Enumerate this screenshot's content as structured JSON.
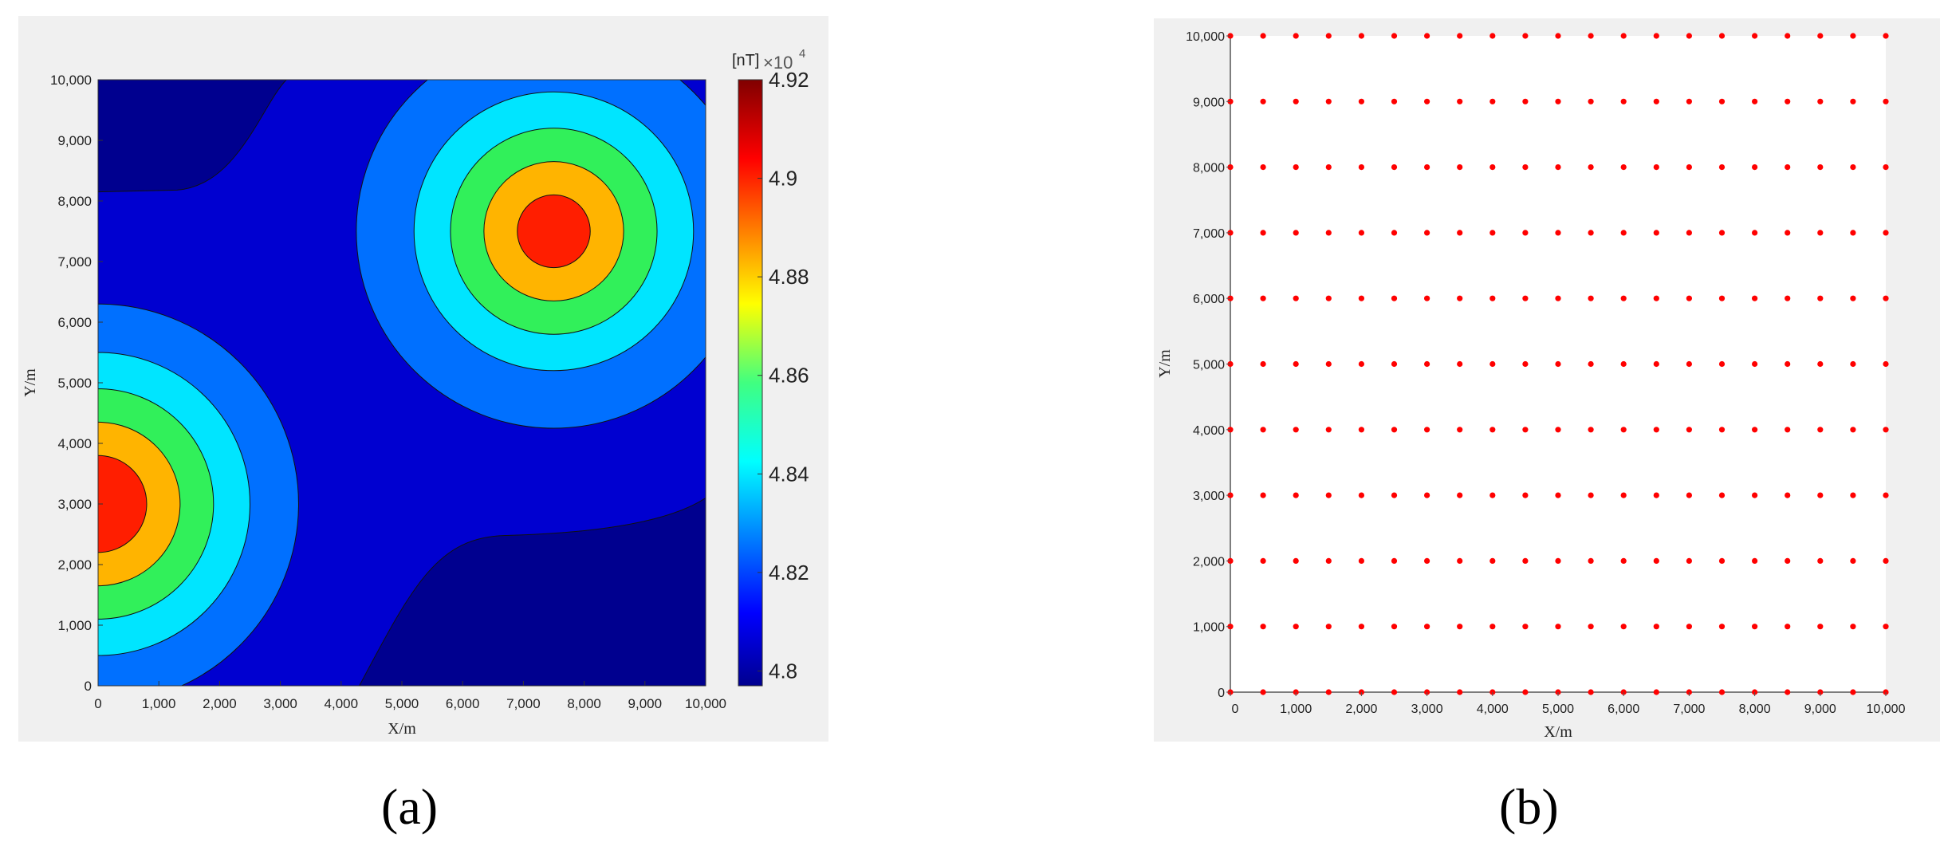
{
  "chart_data": [
    {
      "type": "heatmap",
      "subtype": "filled-contour",
      "panel_label": "(a)",
      "xlabel": "X/m",
      "ylabel": "Y/m",
      "xlim": [
        0,
        10000
      ],
      "ylim": [
        0,
        10000
      ],
      "xticks": [
        0,
        1000,
        2000,
        3000,
        4000,
        5000,
        6000,
        7000,
        8000,
        9000,
        10000
      ],
      "xtick_labels": [
        "0",
        "1,000",
        "2,000",
        "3,000",
        "4,000",
        "5,000",
        "6,000",
        "7,000",
        "8,000",
        "9,000",
        "10,000"
      ],
      "yticks": [
        0,
        1000,
        2000,
        3000,
        4000,
        5000,
        6000,
        7000,
        8000,
        9000,
        10000
      ],
      "ytick_labels": [
        "0",
        "1,000",
        "2,000",
        "3,000",
        "4,000",
        "5,000",
        "6,000",
        "7,000",
        "8,000",
        "9,000",
        "10,000"
      ],
      "colorbar": {
        "unit_label": "[nT]",
        "multiplier_label": "×10",
        "multiplier_exponent": "4",
        "range": [
          4.797,
          4.92
        ],
        "ticks": [
          4.8,
          4.82,
          4.84,
          4.86,
          4.88,
          4.9,
          4.92
        ],
        "tick_labels": [
          "4.8",
          "4.82",
          "4.84",
          "4.86",
          "4.88",
          "4.9",
          "4.92"
        ],
        "colormap": "jet"
      },
      "sources": [
        {
          "x": 7500,
          "y": 7500,
          "peak": 4.92
        },
        {
          "x": 0,
          "y": 3000,
          "peak": 4.905
        }
      ],
      "contour_radii_source_1": [
        600,
        1150,
        1700,
        2300,
        3250
      ],
      "contour_radii_source_2": [
        800,
        1350,
        1900,
        2500,
        3300
      ],
      "region_colors": [
        "#00008f",
        "#0000d0",
        "#0070ff",
        "#00e5ff",
        "#31f05a",
        "#ffb400",
        "#ff1e00",
        "#8c0000"
      ]
    },
    {
      "type": "scatter",
      "panel_label": "(b)",
      "xlabel": "X/m",
      "ylabel": "Y/m",
      "xlim": [
        0,
        10000
      ],
      "ylim": [
        0,
        10000
      ],
      "xticks": [
        0,
        1000,
        2000,
        3000,
        4000,
        5000,
        6000,
        7000,
        8000,
        9000,
        10000
      ],
      "xtick_labels": [
        "0",
        "1,000",
        "2,000",
        "3,000",
        "4,000",
        "5,000",
        "6,000",
        "7,000",
        "8,000",
        "9,000",
        "10,000"
      ],
      "yticks": [
        0,
        1000,
        2000,
        3000,
        4000,
        5000,
        6000,
        7000,
        8000,
        9000,
        10000
      ],
      "ytick_labels": [
        "0",
        "1,000",
        "2,000",
        "3,000",
        "4,000",
        "5,000",
        "6,000",
        "7,000",
        "8,000",
        "9,000",
        "10,000"
      ],
      "point_color": "#ff0000",
      "grid_points": {
        "x_start": 0,
        "x_end": 10000,
        "x_step": 500,
        "y_start": 0,
        "y_end": 10000,
        "y_step": 1000
      }
    }
  ]
}
